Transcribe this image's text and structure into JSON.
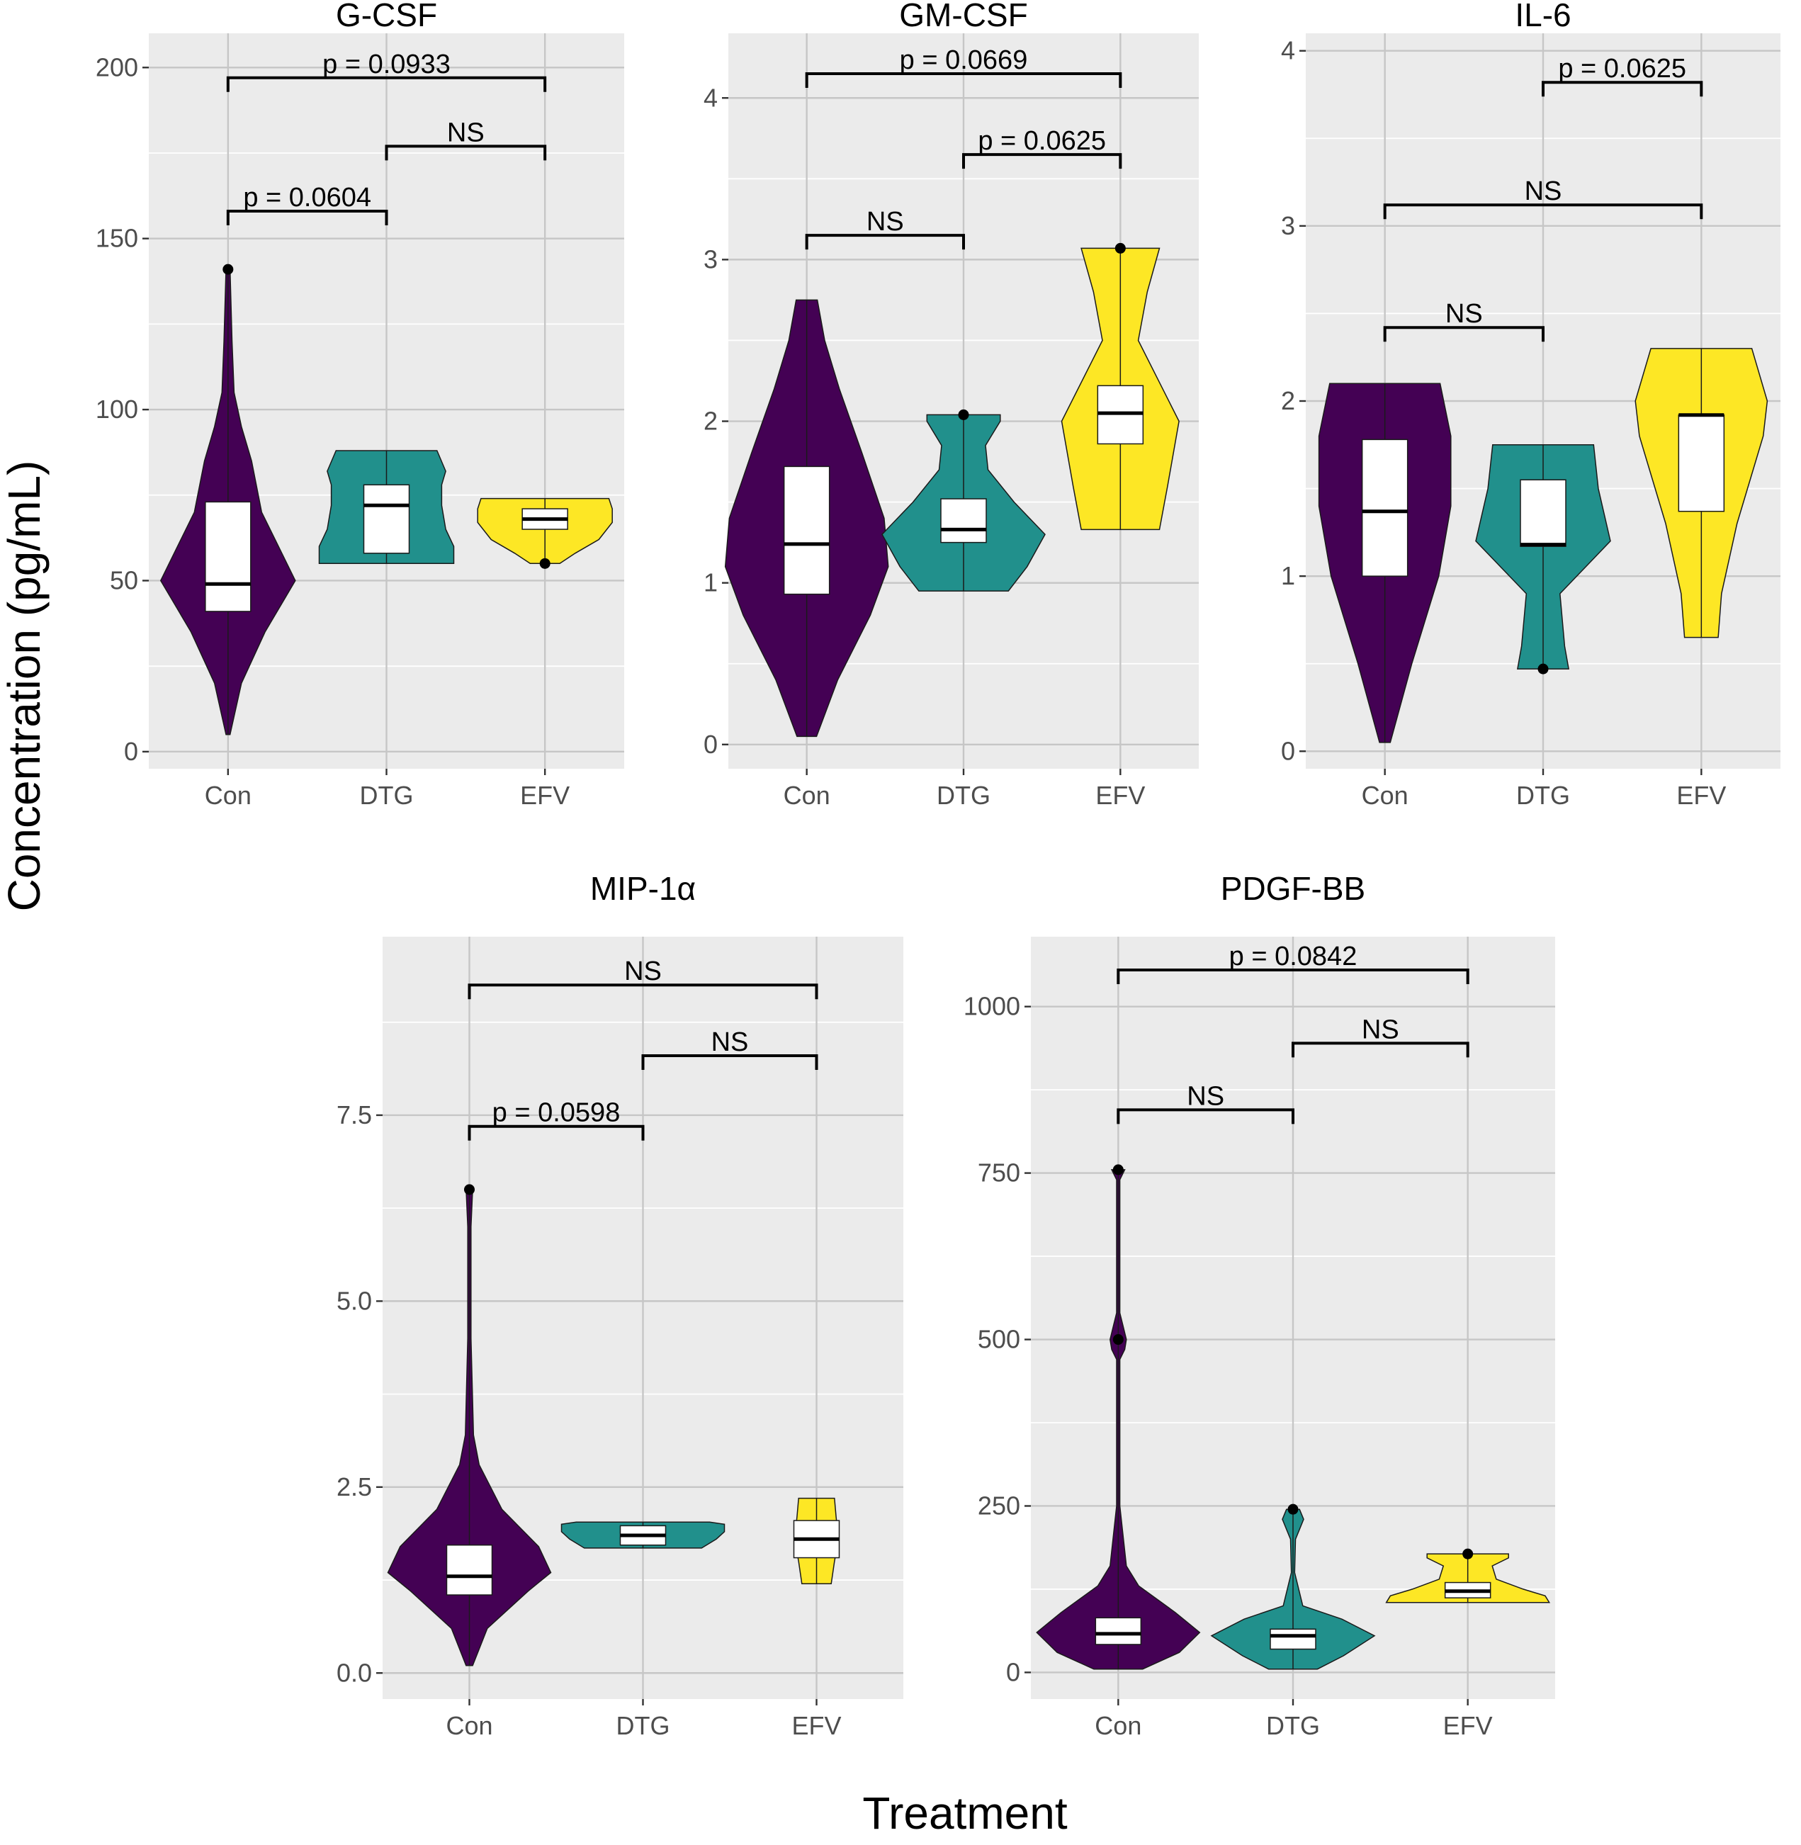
{
  "figure": {
    "ylabel": "Concentration (pg/mL)",
    "xlabel": "Treatment"
  },
  "colors": {
    "Con": "#440154",
    "DTG": "#21908C",
    "EFV": "#FDE725",
    "panel_background": "#EBEBEB",
    "grid_major": "#C6C6C6",
    "grid_minor": "#FFFFFF"
  },
  "chart_data": [
    {
      "type": "violin",
      "title": "G-CSF",
      "categories": [
        "Con",
        "DTG",
        "EFV"
      ],
      "ylim": [
        -5,
        210
      ],
      "yticks": [
        0,
        50,
        100,
        150,
        200
      ],
      "minor_ticks": [
        25,
        75,
        125,
        175
      ],
      "tick_labels": [
        "0",
        "50",
        "100",
        "150",
        "200"
      ],
      "groups": [
        {
          "name": "Con",
          "violin": [
            [
              5,
              0.03
            ],
            [
              20,
              0.2
            ],
            [
              35,
              0.55
            ],
            [
              45,
              0.85
            ],
            [
              50,
              1.0
            ],
            [
              58,
              0.8
            ],
            [
              70,
              0.5
            ],
            [
              85,
              0.35
            ],
            [
              95,
              0.2
            ],
            [
              105,
              0.09
            ],
            [
              120,
              0.06
            ],
            [
              141,
              0.03
            ]
          ],
          "box": {
            "q1": 41,
            "median": 49,
            "q3": 73,
            "lower": 5,
            "upper": 141
          },
          "outliers": [
            141
          ]
        },
        {
          "name": "DTG",
          "violin": [
            [
              55,
              1.0
            ],
            [
              60,
              1.0
            ],
            [
              65,
              0.88
            ],
            [
              72,
              0.82
            ],
            [
              78,
              0.82
            ],
            [
              82,
              0.88
            ],
            [
              88,
              0.75
            ]
          ],
          "box": {
            "q1": 58,
            "median": 72,
            "q3": 78,
            "lower": 55,
            "upper": 88
          },
          "outliers": []
        },
        {
          "name": "EFV",
          "violin": [
            [
              55,
              0.22
            ],
            [
              58,
              0.45
            ],
            [
              62,
              0.8
            ],
            [
              67,
              1.0
            ],
            [
              71,
              1.0
            ],
            [
              74,
              0.95
            ]
          ],
          "box": {
            "q1": 65,
            "median": 68,
            "q3": 71,
            "lower": 55,
            "upper": 74
          },
          "outliers": [
            55
          ]
        }
      ],
      "brackets": [
        {
          "from": "Con",
          "to": "EFV",
          "y": 197,
          "label": "p = 0.0933"
        },
        {
          "from": "DTG",
          "to": "EFV",
          "y": 177,
          "label": "NS"
        },
        {
          "from": "Con",
          "to": "DTG",
          "y": 158,
          "label": "p = 0.0604"
        }
      ]
    },
    {
      "type": "violin",
      "title": "GM-CSF",
      "categories": [
        "Con",
        "DTG",
        "EFV"
      ],
      "ylim": [
        -0.15,
        4.4
      ],
      "yticks": [
        0,
        1,
        2,
        3,
        4
      ],
      "minor_ticks": [
        0.5,
        1.5,
        2.5,
        3.5
      ],
      "tick_labels": [
        "0",
        "1",
        "2",
        "3",
        "4"
      ],
      "groups": [
        {
          "name": "Con",
          "violin": [
            [
              0.05,
              0.12
            ],
            [
              0.4,
              0.38
            ],
            [
              0.8,
              0.78
            ],
            [
              1.1,
              1.0
            ],
            [
              1.4,
              0.95
            ],
            [
              1.8,
              0.68
            ],
            [
              2.2,
              0.4
            ],
            [
              2.5,
              0.22
            ],
            [
              2.75,
              0.13
            ]
          ],
          "box": {
            "q1": 0.93,
            "median": 1.24,
            "q3": 1.72,
            "lower": 0.05,
            "upper": 2.75
          },
          "outliers": []
        },
        {
          "name": "DTG",
          "violin": [
            [
              0.95,
              0.55
            ],
            [
              1.1,
              0.78
            ],
            [
              1.3,
              1.0
            ],
            [
              1.5,
              0.62
            ],
            [
              1.7,
              0.3
            ],
            [
              1.85,
              0.27
            ],
            [
              2.0,
              0.45
            ],
            [
              2.04,
              0.45
            ]
          ],
          "box": {
            "q1": 1.25,
            "median": 1.33,
            "q3": 1.52,
            "lower": 0.95,
            "upper": 2.04
          },
          "outliers": [
            2.04
          ]
        },
        {
          "name": "EFV",
          "violin": [
            [
              1.33,
              0.48
            ],
            [
              1.6,
              0.58
            ],
            [
              2.0,
              0.72
            ],
            [
              2.5,
              0.22
            ],
            [
              2.8,
              0.33
            ],
            [
              3.07,
              0.48
            ]
          ],
          "box": {
            "q1": 1.86,
            "median": 2.05,
            "q3": 2.22,
            "lower": 1.33,
            "upper": 3.07
          },
          "outliers": [
            3.07
          ]
        }
      ],
      "brackets": [
        {
          "from": "Con",
          "to": "EFV",
          "y": 4.15,
          "label": "p = 0.0669"
        },
        {
          "from": "DTG",
          "to": "EFV",
          "y": 3.65,
          "label": "p = 0.0625"
        },
        {
          "from": "Con",
          "to": "DTG",
          "y": 3.15,
          "label": "NS"
        }
      ]
    },
    {
      "type": "violin",
      "title": "IL-6",
      "categories": [
        "Con",
        "DTG",
        "EFV"
      ],
      "ylim": [
        -0.1,
        4.1
      ],
      "yticks": [
        0,
        1,
        2,
        3,
        4
      ],
      "minor_ticks": [
        0.5,
        1.5,
        2.5,
        3.5
      ],
      "tick_labels": [
        "0",
        "1",
        "2",
        "3",
        "4"
      ],
      "groups": [
        {
          "name": "Con",
          "violin": [
            [
              0.05,
              0.08
            ],
            [
              0.5,
              0.4
            ],
            [
              1.0,
              0.8
            ],
            [
              1.4,
              0.98
            ],
            [
              1.8,
              0.98
            ],
            [
              2.1,
              0.82
            ]
          ],
          "box": {
            "q1": 1.0,
            "median": 1.37,
            "q3": 1.78,
            "lower": 0.05,
            "upper": 2.1
          },
          "outliers": []
        },
        {
          "name": "DTG",
          "violin": [
            [
              0.47,
              0.38
            ],
            [
              0.6,
              0.32
            ],
            [
              0.9,
              0.25
            ],
            [
              1.2,
              1.0
            ],
            [
              1.5,
              0.82
            ],
            [
              1.75,
              0.75
            ]
          ],
          "box": {
            "q1": 1.17,
            "median": 1.18,
            "q3": 1.55,
            "lower": 0.47,
            "upper": 1.75
          },
          "outliers": [
            0.47
          ]
        },
        {
          "name": "EFV",
          "violin": [
            [
              0.65,
              0.25
            ],
            [
              0.9,
              0.3
            ],
            [
              1.3,
              0.53
            ],
            [
              1.8,
              0.92
            ],
            [
              2.0,
              0.98
            ],
            [
              2.3,
              0.75
            ]
          ],
          "box": {
            "q1": 1.37,
            "median": 1.92,
            "q3": 1.92,
            "lower": 0.65,
            "upper": 2.3
          },
          "outliers": []
        }
      ],
      "brackets": [
        {
          "from": "DTG",
          "to": "EFV",
          "y": 3.82,
          "label": "p = 0.0625"
        },
        {
          "from": "Con",
          "to": "EFV",
          "y": 3.12,
          "label": "NS"
        },
        {
          "from": "Con",
          "to": "DTG",
          "y": 2.42,
          "label": "NS"
        }
      ]
    },
    {
      "type": "violin",
      "title": "MIP-1α",
      "categories": [
        "Con",
        "DTG",
        "EFV"
      ],
      "ylim": [
        -0.35,
        9.9
      ],
      "yticks": [
        0.0,
        2.5,
        5.0,
        7.5
      ],
      "minor_ticks": [
        1.25,
        3.75,
        6.25,
        8.75
      ],
      "tick_labels": [
        "0.0",
        "2.5",
        "5.0",
        "7.5"
      ],
      "groups": [
        {
          "name": "Con",
          "violin": [
            [
              0.1,
              0.04
            ],
            [
              0.6,
              0.22
            ],
            [
              1.1,
              0.72
            ],
            [
              1.35,
              1.0
            ],
            [
              1.7,
              0.85
            ],
            [
              2.2,
              0.4
            ],
            [
              2.8,
              0.12
            ],
            [
              3.2,
              0.05
            ],
            [
              4.5,
              0.02
            ],
            [
              6.0,
              0.02
            ],
            [
              6.5,
              0.04
            ]
          ],
          "box": {
            "q1": 1.05,
            "median": 1.3,
            "q3": 1.72,
            "lower": 0.1,
            "upper": 6.5
          },
          "outliers": [
            6.5
          ]
        },
        {
          "name": "DTG",
          "violin": [
            [
              1.68,
              0.72
            ],
            [
              1.8,
              0.9
            ],
            [
              1.9,
              1.0
            ],
            [
              2.0,
              1.0
            ],
            [
              2.03,
              0.82
            ]
          ],
          "box": {
            "q1": 1.72,
            "median": 1.85,
            "q3": 1.98,
            "lower": 1.68,
            "upper": 2.03
          },
          "outliers": []
        },
        {
          "name": "EFV",
          "violin": [
            [
              1.2,
              0.18
            ],
            [
              1.5,
              0.22
            ],
            [
              1.8,
              0.27
            ],
            [
              2.1,
              0.24
            ],
            [
              2.35,
              0.22
            ]
          ],
          "box": {
            "q1": 1.55,
            "median": 1.8,
            "q3": 2.05,
            "lower": 1.2,
            "upper": 2.35
          },
          "outliers": []
        }
      ],
      "brackets": [
        {
          "from": "Con",
          "to": "EFV",
          "y": 9.25,
          "label": "NS"
        },
        {
          "from": "DTG",
          "to": "EFV",
          "y": 8.3,
          "label": "NS"
        },
        {
          "from": "Con",
          "to": "DTG",
          "y": 7.35,
          "label": "p = 0.0598"
        }
      ]
    },
    {
      "type": "violin",
      "title": "PDGF-BB",
      "categories": [
        "Con",
        "DTG",
        "EFV"
      ],
      "ylim": [
        -40,
        1105
      ],
      "yticks": [
        0,
        250,
        500,
        750,
        1000
      ],
      "minor_ticks": [
        125,
        375,
        625,
        875
      ],
      "tick_labels": [
        "0",
        "250",
        "500",
        "750",
        "1000"
      ],
      "groups": [
        {
          "name": "Con",
          "violin": [
            [
              5,
              0.3
            ],
            [
              30,
              0.75
            ],
            [
              60,
              1.0
            ],
            [
              90,
              0.7
            ],
            [
              130,
              0.25
            ],
            [
              160,
              0.1
            ],
            [
              250,
              0.02
            ],
            [
              470,
              0.02
            ],
            [
              485,
              0.08
            ],
            [
              500,
              0.1
            ],
            [
              520,
              0.06
            ],
            [
              540,
              0.02
            ],
            [
              740,
              0.02
            ],
            [
              755,
              0.08
            ]
          ],
          "box": {
            "q1": 42,
            "median": 58,
            "q3": 82,
            "lower": 5,
            "upper": 755
          },
          "outliers": [
            755,
            500
          ]
        },
        {
          "name": "DTG",
          "violin": [
            [
              5,
              0.3
            ],
            [
              25,
              0.62
            ],
            [
              55,
              1.0
            ],
            [
              80,
              0.6
            ],
            [
              100,
              0.12
            ],
            [
              150,
              0.02
            ],
            [
              200,
              0.03
            ],
            [
              230,
              0.13
            ],
            [
              245,
              0.08
            ]
          ],
          "box": {
            "q1": 35,
            "median": 55,
            "q3": 65,
            "lower": 5,
            "upper": 245
          },
          "outliers": [
            245
          ]
        },
        {
          "name": "EFV",
          "violin": [
            [
              105,
              1.0
            ],
            [
              115,
              0.95
            ],
            [
              125,
              0.68
            ],
            [
              140,
              0.35
            ],
            [
              160,
              0.3
            ],
            [
              172,
              0.5
            ],
            [
              178,
              0.5
            ]
          ],
          "box": {
            "q1": 112,
            "median": 122,
            "q3": 135,
            "lower": 105,
            "upper": 178
          },
          "outliers": [
            178
          ]
        }
      ],
      "brackets": [
        {
          "from": "Con",
          "to": "EFV",
          "y": 1055,
          "label": "p = 0.0842"
        },
        {
          "from": "DTG",
          "to": "EFV",
          "y": 945,
          "label": "NS"
        },
        {
          "from": "Con",
          "to": "DTG",
          "y": 845,
          "label": "NS"
        }
      ]
    }
  ]
}
